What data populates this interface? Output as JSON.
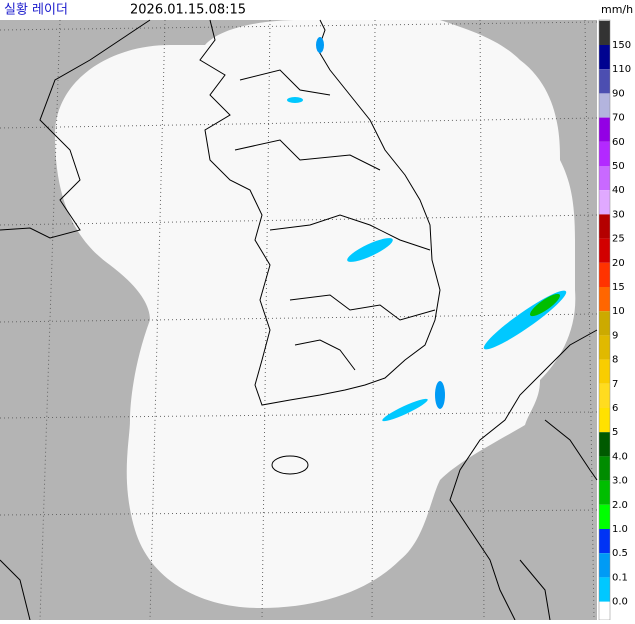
{
  "header": {
    "title": "실황 레이더",
    "timestamp": "2026.01.15.08:15",
    "unit": "mm/h"
  },
  "legend": {
    "items": [
      {
        "label": "150",
        "color": "#333333"
      },
      {
        "label": "110",
        "color": "#000390"
      },
      {
        "label": "90",
        "color": "#4c4eb1"
      },
      {
        "label": "70",
        "color": "#b3b4de"
      },
      {
        "label": "60",
        "color": "#9300e4"
      },
      {
        "label": "50",
        "color": "#b329ff"
      },
      {
        "label": "40",
        "color": "#c969ff"
      },
      {
        "label": "30",
        "color": "#e0a9ff"
      },
      {
        "label": "25",
        "color": "#b40000"
      },
      {
        "label": "20",
        "color": "#d20000"
      },
      {
        "label": "15",
        "color": "#ff3300"
      },
      {
        "label": "10",
        "color": "#ff6600"
      },
      {
        "label": "9",
        "color": "#ccaa00"
      },
      {
        "label": "8",
        "color": "#e0b900"
      },
      {
        "label": "7",
        "color": "#f9cd00"
      },
      {
        "label": "6",
        "color": "#ffdc1f"
      },
      {
        "label": "5",
        "color": "#ffe100"
      },
      {
        "label": "4.0",
        "color": "#005a00"
      },
      {
        "label": "3.0",
        "color": "#008c00"
      },
      {
        "label": "2.0",
        "color": "#00be00"
      },
      {
        "label": "1.0",
        "color": "#00ff00"
      },
      {
        "label": "0.5",
        "color": "#0033f5"
      },
      {
        "label": "0.1",
        "color": "#009bf5"
      },
      {
        "label": "0.0",
        "color": "#00c8ff"
      }
    ]
  }
}
